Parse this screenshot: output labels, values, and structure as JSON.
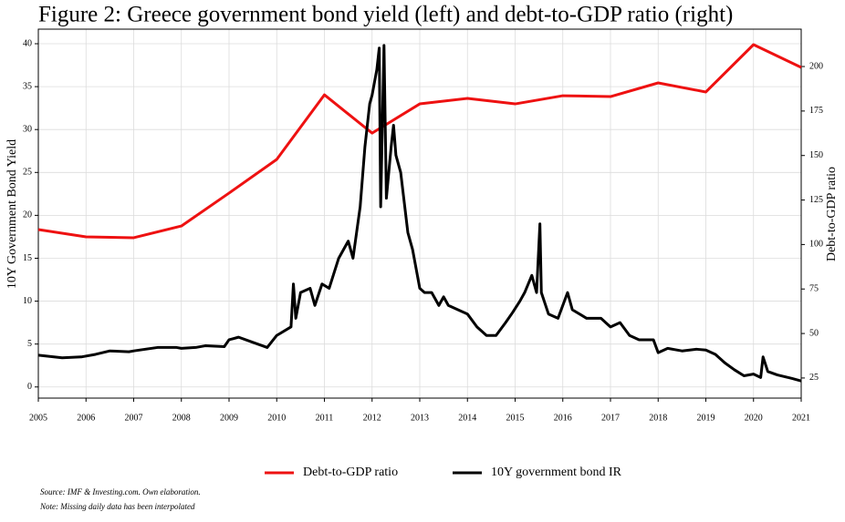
{
  "chart_data": {
    "type": "line",
    "title": "Figure 2: Greece government bond yield (left) and debt-to-GDP ratio (right)",
    "ylabel": "10Y Government Bond Yield",
    "y2label": "Debt-to-GDP ratio",
    "xlim": [
      2005,
      2021
    ],
    "xticks": [
      2005,
      2006,
      2007,
      2008,
      2009,
      2010,
      2011,
      2012,
      2013,
      2014,
      2015,
      2016,
      2017,
      2018,
      2019,
      2020,
      2021
    ],
    "ylim": [
      -1.3,
      41.7
    ],
    "yticks": [
      0,
      5,
      10,
      15,
      20,
      25,
      30,
      35,
      40
    ],
    "y2lim": [
      13.7,
      221
    ],
    "y2ticks": [
      25,
      50,
      75,
      100,
      125,
      150,
      175,
      200
    ],
    "grid": true,
    "legend": "bottom",
    "series": [
      {
        "name": "Debt-to-GDP ratio",
        "color": "#ee1111",
        "axis": "y2",
        "x": [
          2005,
          2006,
          2007,
          2008,
          2009,
          2010,
          2011,
          2012,
          2013,
          2014,
          2015,
          2016,
          2017,
          2018,
          2019,
          2020,
          2021
        ],
        "values": [
          108.4,
          104.3,
          103.8,
          110.4,
          128.9,
          147.8,
          184.1,
          162.6,
          179.0,
          182.1,
          179.0,
          183.6,
          183.1,
          190.8,
          185.7,
          212.3,
          199.5
        ]
      },
      {
        "name": "10Y government bond IR",
        "color": "#000000",
        "axis": "y",
        "x": [
          2005.0,
          2005.5,
          2005.9,
          2006.2,
          2006.5,
          2006.9,
          2007.0,
          2007.5,
          2007.9,
          2008.0,
          2008.3,
          2008.5,
          2008.9,
          2009.0,
          2009.2,
          2009.5,
          2009.8,
          2010.0,
          2010.3,
          2010.35,
          2010.4,
          2010.5,
          2010.7,
          2010.8,
          2010.95,
          2011.1,
          2011.3,
          2011.5,
          2011.6,
          2011.75,
          2011.85,
          2011.95,
          2012.0,
          2012.1,
          2012.15,
          2012.18,
          2012.25,
          2012.3,
          2012.4,
          2012.45,
          2012.5,
          2012.6,
          2012.75,
          2012.85,
          2013.0,
          2013.1,
          2013.25,
          2013.4,
          2013.5,
          2013.6,
          2013.8,
          2014.0,
          2014.2,
          2014.4,
          2014.6,
          2014.8,
          2014.95,
          2015.1,
          2015.2,
          2015.35,
          2015.45,
          2015.52,
          2015.55,
          2015.7,
          2015.9,
          2016.1,
          2016.2,
          2016.5,
          2016.8,
          2017.0,
          2017.2,
          2017.4,
          2017.6,
          2017.9,
          2018.0,
          2018.2,
          2018.5,
          2018.8,
          2019.0,
          2019.2,
          2019.4,
          2019.6,
          2019.8,
          2020.0,
          2020.15,
          2020.2,
          2020.3,
          2020.5,
          2020.8,
          2021.0
        ],
        "values": [
          3.7,
          3.4,
          3.5,
          3.8,
          4.2,
          4.1,
          4.2,
          4.6,
          4.6,
          4.5,
          4.6,
          4.8,
          4.7,
          5.5,
          5.8,
          5.2,
          4.6,
          6.0,
          7.0,
          12.0,
          8.0,
          11.0,
          11.5,
          9.5,
          12.0,
          11.5,
          15.0,
          17.0,
          15.0,
          21.0,
          28.0,
          33.0,
          34.0,
          37.0,
          39.5,
          21.0,
          39.8,
          22.0,
          28.0,
          30.5,
          27.0,
          25.0,
          18.0,
          16.0,
          11.5,
          11.0,
          11.0,
          9.5,
          10.5,
          9.5,
          9.0,
          8.5,
          7.0,
          6.0,
          6.0,
          7.5,
          8.7,
          10.0,
          11.0,
          13.0,
          11.0,
          19.0,
          11.0,
          8.5,
          8.0,
          11.0,
          9.0,
          8.0,
          8.0,
          7.0,
          7.5,
          6.0,
          5.5,
          5.5,
          4.0,
          4.5,
          4.2,
          4.4,
          4.3,
          3.8,
          2.8,
          2.0,
          1.3,
          1.5,
          1.1,
          3.5,
          1.8,
          1.4,
          1.0,
          0.7
        ]
      }
    ],
    "notes": [
      "Source: IMF & Investing.com. Own elaboration.",
      "Note: Missing daily data has been interpolated"
    ]
  }
}
